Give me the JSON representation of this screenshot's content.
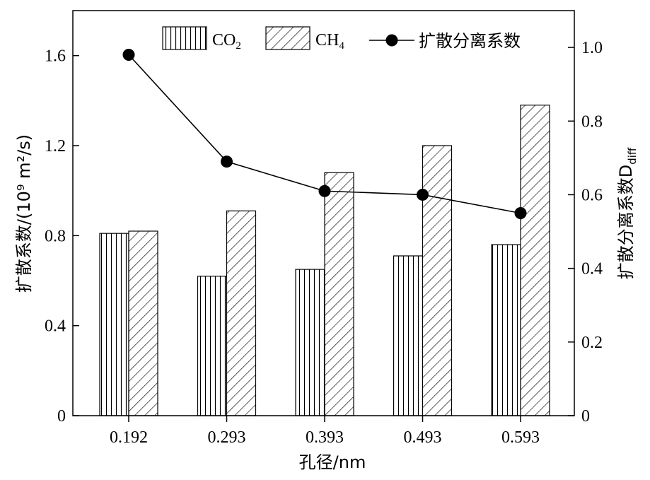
{
  "chart_data": {
    "type": "bar",
    "categories": [
      "0.192",
      "0.293",
      "0.393",
      "0.493",
      "0.593"
    ],
    "xlabel": "孔径/nm",
    "ylabel_left": "扩散系数/(10⁹ m²/s)",
    "ylabel_right": "扩散分离系数D",
    "ylabel_right_subscript": "diff",
    "ylim_left": [
      0,
      1.8
    ],
    "ylim_right": [
      0,
      1.1
    ],
    "yticks_left": [
      "0",
      "0.4",
      "0.8",
      "1.2",
      "1.6"
    ],
    "yticks_left_values": [
      0,
      0.4,
      0.8,
      1.2,
      1.6
    ],
    "yticks_right": [
      "0",
      "0.2",
      "0.4",
      "0.6",
      "0.8",
      "1.0"
    ],
    "yticks_right_values": [
      0,
      0.2,
      0.4,
      0.6,
      0.8,
      1.0
    ],
    "series": [
      {
        "name": "CO2",
        "name_main": "CO",
        "name_sub": "2",
        "kind": "bar",
        "hatch": "vertical",
        "axis": "left",
        "values": [
          0.81,
          0.62,
          0.65,
          0.71,
          0.76
        ]
      },
      {
        "name": "CH4",
        "name_main": "CH",
        "name_sub": "4",
        "kind": "bar",
        "hatch": "diagonal",
        "axis": "left",
        "values": [
          0.82,
          0.91,
          1.08,
          1.2,
          1.38
        ]
      },
      {
        "name": "扩散分离系数",
        "kind": "line",
        "marker": "circle",
        "axis": "right",
        "values": [
          0.98,
          0.69,
          0.61,
          0.6,
          0.55
        ]
      }
    ],
    "grid": false,
    "legend_position": "top-right"
  }
}
